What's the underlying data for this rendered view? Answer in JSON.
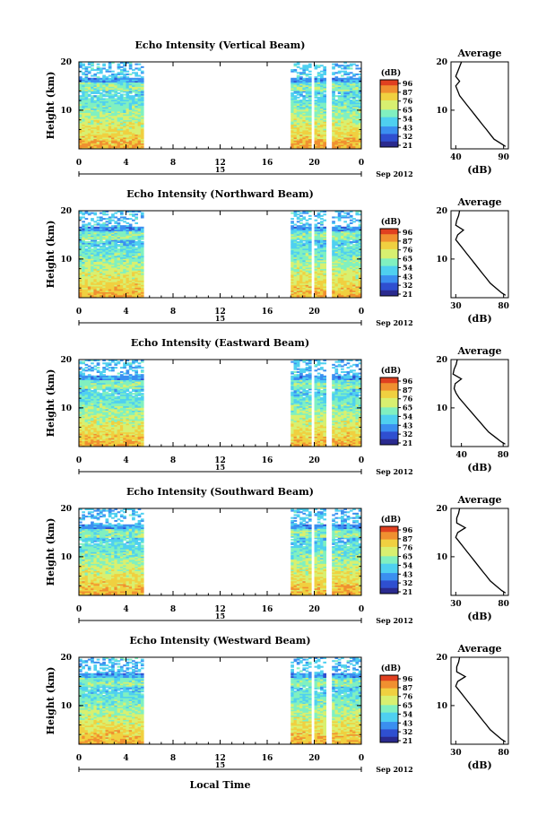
{
  "figure": {
    "xlabel": "Local Time",
    "day": "15",
    "month_label": "Sep 2012",
    "x_ticks": [
      "0",
      "4",
      "8",
      "12",
      "16",
      "20",
      "0"
    ],
    "colorbar_unit": "(dB)",
    "colorbar_ticks_first": [
      "96",
      "87",
      "76",
      "65",
      "54",
      "43",
      "32",
      "21"
    ],
    "colorbar_ticks_other": [
      "96",
      "87",
      "76",
      "65",
      "54",
      "43",
      "32",
      "21"
    ],
    "colors": {
      "scale": [
        "#2a2a8f",
        "#2f4fd0",
        "#3b8ff0",
        "#4fd0f0",
        "#80f0c0",
        "#d8f070",
        "#f0d040",
        "#f09030",
        "#e04020"
      ]
    }
  },
  "chart_data": [
    {
      "type": "heatmap",
      "title": "Echo Intensity (Vertical Beam)",
      "ylabel": "Height (km)",
      "y_ticks": [
        "20",
        "10"
      ],
      "ylim": [
        2,
        20
      ],
      "xlim": [
        0,
        24
      ],
      "coverage_hours": [
        [
          0,
          5.3
        ],
        [
          18,
          24
        ]
      ],
      "avg_title": "Average",
      "avg_xlabel": "(dB)",
      "avg_xticks": [
        "40",
        "90"
      ],
      "avg_xlim": [
        35,
        95
      ],
      "profile": {
        "height": [
          2.5,
          3,
          4,
          5,
          6,
          7,
          8,
          9,
          10,
          11,
          12,
          13,
          14,
          15,
          16,
          17,
          18,
          19,
          20
        ],
        "db": [
          92,
          88,
          80,
          76,
          72,
          68,
          64,
          60,
          56,
          52,
          48,
          44,
          42,
          40,
          44,
          40,
          42,
          44,
          46
        ]
      },
      "colorbar_ticks": [
        "96",
        "87",
        "76",
        "65",
        "54",
        "43",
        "32",
        "21"
      ]
    },
    {
      "type": "heatmap",
      "title": "Echo Intensity (Northward Beam)",
      "ylabel": "Height (km)",
      "y_ticks": [
        "20",
        "10"
      ],
      "ylim": [
        2,
        20
      ],
      "xlim": [
        0,
        24
      ],
      "coverage_hours": [
        [
          0,
          5.3
        ],
        [
          18,
          24
        ]
      ],
      "avg_title": "Average",
      "avg_xlabel": "(dB)",
      "avg_xticks": [
        "30",
        "80"
      ],
      "avg_xlim": [
        25,
        85
      ],
      "profile": {
        "height": [
          2.5,
          3,
          4,
          5,
          6,
          7,
          8,
          9,
          10,
          11,
          12,
          13,
          14,
          15,
          16,
          17,
          18,
          19,
          20
        ],
        "db": [
          82,
          78,
          72,
          66,
          62,
          58,
          54,
          50,
          46,
          42,
          38,
          34,
          30,
          32,
          38,
          30,
          31,
          33,
          34
        ]
      },
      "colorbar_ticks": [
        "96",
        "87",
        "76",
        "65",
        "54",
        "43",
        "32",
        "21"
      ]
    },
    {
      "type": "heatmap",
      "title": "Echo Intensity (Eastward Beam)",
      "ylabel": "Height (km)",
      "y_ticks": [
        "20",
        "10"
      ],
      "ylim": [
        2,
        20
      ],
      "xlim": [
        0,
        24
      ],
      "coverage_hours": [
        [
          0,
          5.3
        ],
        [
          18,
          24
        ]
      ],
      "avg_title": "Average",
      "avg_xlabel": "(dB)",
      "avg_xticks": [
        "40",
        "80"
      ],
      "avg_xlim": [
        30,
        85
      ],
      "profile": {
        "height": [
          2.5,
          3,
          4,
          5,
          6,
          7,
          8,
          9,
          10,
          11,
          12,
          13,
          14,
          15,
          16,
          17,
          18,
          19,
          20
        ],
        "db": [
          82,
          78,
          72,
          66,
          62,
          58,
          54,
          50,
          46,
          42,
          38,
          35,
          33,
          34,
          40,
          32,
          33,
          35,
          36
        ]
      },
      "colorbar_ticks": [
        "96",
        "87",
        "76",
        "65",
        "54",
        "43",
        "32",
        "21"
      ]
    },
    {
      "type": "heatmap",
      "title": "Echo Intensity (Southward Beam)",
      "ylabel": "Height (km)",
      "y_ticks": [
        "20",
        "10"
      ],
      "ylim": [
        2,
        20
      ],
      "xlim": [
        0,
        24
      ],
      "coverage_hours": [
        [
          0,
          5.3
        ],
        [
          18,
          24
        ]
      ],
      "avg_title": "Average",
      "avg_xlabel": "(dB)",
      "avg_xticks": [
        "30",
        "80"
      ],
      "avg_xlim": [
        25,
        85
      ],
      "profile": {
        "height": [
          2.5,
          3,
          4,
          5,
          6,
          7,
          8,
          9,
          10,
          11,
          12,
          13,
          14,
          15,
          16,
          17,
          18,
          19,
          20
        ],
        "db": [
          82,
          78,
          72,
          66,
          62,
          58,
          54,
          50,
          46,
          42,
          38,
          34,
          30,
          32,
          40,
          31,
          31,
          33,
          34
        ]
      },
      "colorbar_ticks": [
        "96",
        "87",
        "76",
        "65",
        "54",
        "43",
        "32",
        "21"
      ]
    },
    {
      "type": "heatmap",
      "title": "Echo Intensity (Westward Beam)",
      "ylabel": "Height (km)",
      "y_ticks": [
        "20",
        "10"
      ],
      "ylim": [
        2,
        20
      ],
      "xlim": [
        0,
        24
      ],
      "coverage_hours": [
        [
          0,
          5.3
        ],
        [
          18,
          24
        ]
      ],
      "avg_title": "Average",
      "avg_xlabel": "(dB)",
      "avg_xticks": [
        "30",
        "80"
      ],
      "avg_xlim": [
        25,
        85
      ],
      "profile": {
        "height": [
          2.5,
          3,
          4,
          5,
          6,
          7,
          8,
          9,
          10,
          11,
          12,
          13,
          14,
          15,
          16,
          17,
          18,
          19,
          20
        ],
        "db": [
          82,
          78,
          72,
          66,
          62,
          58,
          54,
          50,
          46,
          42,
          38,
          34,
          30,
          32,
          40,
          31,
          31,
          33,
          34
        ]
      },
      "colorbar_ticks": [
        "96",
        "87",
        "76",
        "65",
        "54",
        "43",
        "32",
        "21"
      ]
    }
  ]
}
